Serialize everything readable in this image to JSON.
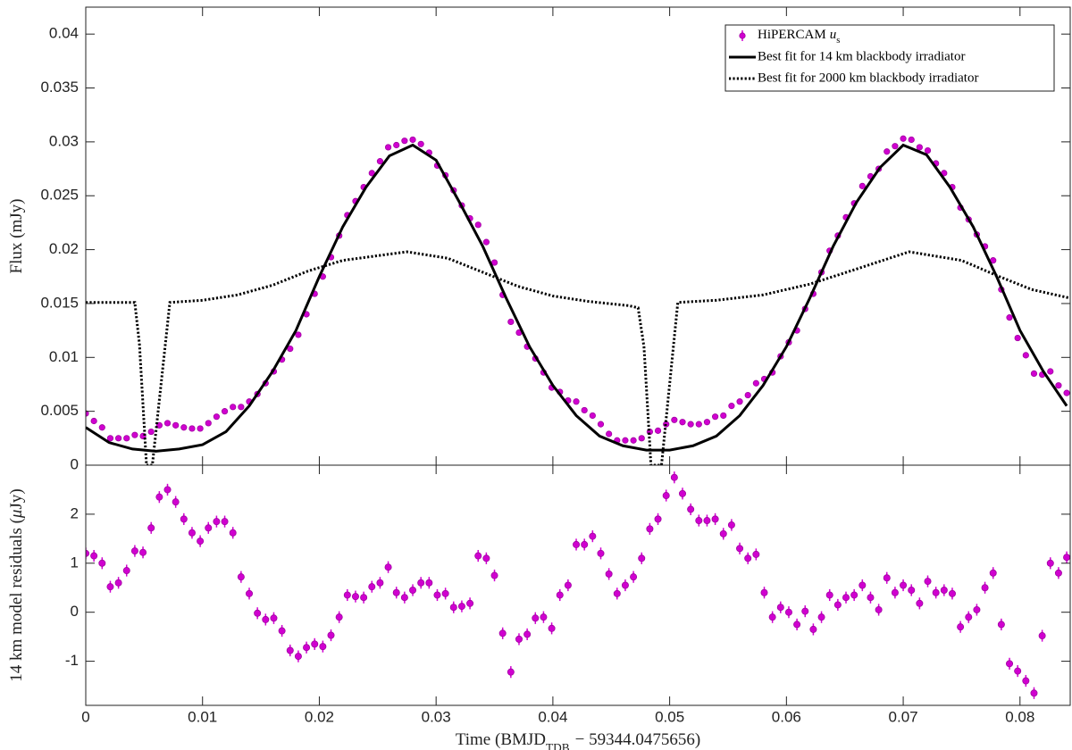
{
  "chart_data": [
    {
      "type": "line",
      "ylabel": "Flux (mJy)",
      "xlim": [
        0,
        0.0843
      ],
      "ylim": [
        0,
        0.0425
      ],
      "xticks": [
        0,
        0.01,
        0.02,
        0.03,
        0.04,
        0.05,
        0.06,
        0.07,
        0.08
      ],
      "xticklabels": false,
      "yticks": [
        0,
        0.005,
        0.01,
        0.015,
        0.02,
        0.025,
        0.03,
        0.035,
        0.04
      ],
      "legend": "upper right",
      "series": [
        {
          "name": [
            "HiPERCAM",
            "u",
            "s"
          ],
          "color": "#d000d0",
          "style": "markers",
          "error": 0.0002,
          "x": [
            0,
            0.0007,
            0.0014,
            0.0021,
            0.0028,
            0.0035,
            0.0042,
            0.0049,
            0.0056,
            0.0063,
            0.007,
            0.0077,
            0.0084,
            0.0091,
            0.0098,
            0.0105,
            0.0112,
            0.0119,
            0.0126,
            0.0133,
            0.014,
            0.0147,
            0.0154,
            0.0161,
            0.0168,
            0.0175,
            0.0182,
            0.0189,
            0.0196,
            0.0203,
            0.021,
            0.0217,
            0.0224,
            0.0231,
            0.0238,
            0.0245,
            0.0252,
            0.0259,
            0.0266,
            0.0273,
            0.028,
            0.0287,
            0.0294,
            0.0301,
            0.0308,
            0.0315,
            0.0322,
            0.0329,
            0.0336,
            0.0343,
            0.035,
            0.0357,
            0.0364,
            0.0371,
            0.0378,
            0.0385,
            0.0392,
            0.0399,
            0.0406,
            0.0413,
            0.042,
            0.0427,
            0.0434,
            0.0441,
            0.0448,
            0.0455,
            0.0462,
            0.0469,
            0.0476,
            0.0483,
            0.049,
            0.0497,
            0.0504,
            0.0511,
            0.0518,
            0.0525,
            0.0532,
            0.0539,
            0.0546,
            0.0553,
            0.056,
            0.0567,
            0.0574,
            0.0581,
            0.0588,
            0.0595,
            0.0602,
            0.0609,
            0.0616,
            0.0623,
            0.063,
            0.0637,
            0.0644,
            0.0651,
            0.0658,
            0.0665,
            0.0672,
            0.0679,
            0.0686,
            0.0693,
            0.07,
            0.0707,
            0.0714,
            0.0721,
            0.0728,
            0.0735,
            0.0742,
            0.0749,
            0.0756,
            0.0763,
            0.077,
            0.0777,
            0.0784,
            0.0791,
            0.0798,
            0.0805,
            0.0812,
            0.0819,
            0.0826,
            0.0833,
            0.084
          ],
          "values": [
            0.0048,
            0.0041,
            0.0035,
            0.0025,
            0.0025,
            0.0025,
            0.0028,
            0.0027,
            0.0031,
            0.0037,
            0.0039,
            0.0037,
            0.0035,
            0.0034,
            0.0034,
            0.0039,
            0.0045,
            0.005,
            0.0054,
            0.0054,
            0.0059,
            0.0066,
            0.0076,
            0.0087,
            0.0098,
            0.0108,
            0.0121,
            0.014,
            0.0159,
            0.0175,
            0.0193,
            0.0213,
            0.0232,
            0.0245,
            0.0258,
            0.0271,
            0.0282,
            0.0295,
            0.0297,
            0.0301,
            0.0302,
            0.0298,
            0.029,
            0.0278,
            0.0269,
            0.0255,
            0.0241,
            0.0229,
            0.0223,
            0.0207,
            0.0188,
            0.0158,
            0.0133,
            0.0123,
            0.011,
            0.0099,
            0.0086,
            0.0072,
            0.0068,
            0.006,
            0.0059,
            0.0051,
            0.0046,
            0.0038,
            0.0029,
            0.0023,
            0.0023,
            0.0023,
            0.0025,
            0.0031,
            0.0032,
            0.0038,
            0.0042,
            0.004,
            0.0038,
            0.0038,
            0.004,
            0.0045,
            0.0046,
            0.0055,
            0.0059,
            0.0065,
            0.0076,
            0.008,
            0.0086,
            0.0101,
            0.0114,
            0.0125,
            0.0145,
            0.0159,
            0.0179,
            0.0199,
            0.0213,
            0.023,
            0.0243,
            0.0259,
            0.0268,
            0.0275,
            0.0291,
            0.0296,
            0.0303,
            0.0302,
            0.0295,
            0.0292,
            0.028,
            0.0271,
            0.0258,
            0.0239,
            0.0228,
            0.0214,
            0.0203,
            0.019,
            0.0163,
            0.0137,
            0.0118,
            0.0102,
            0.0085,
            0.0084,
            0.0087,
            0.0074,
            0.0067
          ]
        },
        {
          "name": "Best fit for 14 km blackbody irradiator",
          "color": "#000000",
          "style": "solid",
          "x": [
            0,
            0.002,
            0.004,
            0.006,
            0.008,
            0.01,
            0.012,
            0.014,
            0.016,
            0.018,
            0.02,
            0.022,
            0.024,
            0.026,
            0.028,
            0.03,
            0.032,
            0.034,
            0.036,
            0.038,
            0.04,
            0.042,
            0.044,
            0.046,
            0.048,
            0.05,
            0.052,
            0.054,
            0.056,
            0.058,
            0.06,
            0.062,
            0.064,
            0.066,
            0.068,
            0.07,
            0.072,
            0.074,
            0.076,
            0.078,
            0.08,
            0.082,
            0.084
          ],
          "values": [
            0.0035,
            0.0021,
            0.0015,
            0.0013,
            0.0015,
            0.0019,
            0.0031,
            0.0055,
            0.0087,
            0.0125,
            0.0175,
            0.0221,
            0.0258,
            0.0287,
            0.0297,
            0.0283,
            0.0244,
            0.0203,
            0.0155,
            0.011,
            0.0074,
            0.0046,
            0.0027,
            0.0018,
            0.0014,
            0.0014,
            0.0018,
            0.0027,
            0.0046,
            0.0074,
            0.011,
            0.0155,
            0.0203,
            0.0244,
            0.0276,
            0.0297,
            0.0288,
            0.0258,
            0.0221,
            0.0175,
            0.0125,
            0.0087,
            0.0055
          ]
        },
        {
          "name": "Best fit for 2000 km blackbody irradiator",
          "color": "#000000",
          "style": "dotted",
          "x": [
            0,
            0.0042,
            0.0046,
            0.0052,
            0.0057,
            0.0072,
            0.01,
            0.013,
            0.016,
            0.019,
            0.022,
            0.0275,
            0.031,
            0.034,
            0.037,
            0.04,
            0.043,
            0.0465,
            0.0473,
            0.0478,
            0.0484,
            0.0493,
            0.0507,
            0.054,
            0.058,
            0.062,
            0.066,
            0.0705,
            0.075,
            0.078,
            0.081,
            0.0843
          ],
          "values": [
            0.0151,
            0.0151,
            0.0112,
            0,
            0,
            0.0151,
            0.0153,
            0.0158,
            0.0167,
            0.018,
            0.019,
            0.0198,
            0.0192,
            0.0179,
            0.0166,
            0.0157,
            0.0152,
            0.0148,
            0.0146,
            0.011,
            0,
            0,
            0.0151,
            0.0153,
            0.0158,
            0.0168,
            0.0182,
            0.0198,
            0.019,
            0.0176,
            0.0163,
            0.0155
          ]
        }
      ]
    },
    {
      "type": "line",
      "ylabel": [
        "14 km model residuals (",
        "μ",
        "Jy)"
      ],
      "xlabel": [
        "Time (BMJD",
        "TDB",
        "− 59344.0475656)"
      ],
      "xlim": [
        0,
        0.0843
      ],
      "ylim": [
        -1.9,
        3
      ],
      "xticks": [
        0,
        0.01,
        0.02,
        0.03,
        0.04,
        0.05,
        0.06,
        0.07,
        0.08
      ],
      "yticks": [
        -1,
        0,
        1,
        2
      ],
      "series": [
        {
          "color": "#d000d0",
          "style": "markers",
          "error": 0.12,
          "x": [
            0,
            0.0007,
            0.0014,
            0.0021,
            0.0028,
            0.0035,
            0.0042,
            0.0049,
            0.0056,
            0.0063,
            0.007,
            0.0077,
            0.0084,
            0.0091,
            0.0098,
            0.0105,
            0.0112,
            0.0119,
            0.0126,
            0.0133,
            0.014,
            0.0147,
            0.0154,
            0.0161,
            0.0168,
            0.0175,
            0.0182,
            0.0189,
            0.0196,
            0.0203,
            0.021,
            0.0217,
            0.0224,
            0.0231,
            0.0238,
            0.0245,
            0.0252,
            0.0259,
            0.0266,
            0.0273,
            0.028,
            0.0287,
            0.0294,
            0.0301,
            0.0308,
            0.0315,
            0.0322,
            0.0329,
            0.0336,
            0.0343,
            0.035,
            0.0357,
            0.0364,
            0.0371,
            0.0378,
            0.0385,
            0.0392,
            0.0399,
            0.0406,
            0.0413,
            0.042,
            0.0427,
            0.0434,
            0.0441,
            0.0448,
            0.0455,
            0.0462,
            0.0469,
            0.0476,
            0.0483,
            0.049,
            0.0497,
            0.0504,
            0.0511,
            0.0518,
            0.0525,
            0.0532,
            0.0539,
            0.0546,
            0.0553,
            0.056,
            0.0567,
            0.0574,
            0.0581,
            0.0588,
            0.0595,
            0.0602,
            0.0609,
            0.0616,
            0.0623,
            0.063,
            0.0637,
            0.0644,
            0.0651,
            0.0658,
            0.0665,
            0.0672,
            0.0679,
            0.0686,
            0.0693,
            0.07,
            0.0707,
            0.0714,
            0.0721,
            0.0728,
            0.0735,
            0.0742,
            0.0749,
            0.0756,
            0.0763,
            0.077,
            0.0777,
            0.0784,
            0.0791,
            0.0798,
            0.0805,
            0.0812,
            0.0819,
            0.0826,
            0.0833,
            0.084
          ],
          "values": [
            1.2,
            1.15,
            1.0,
            0.52,
            0.6,
            0.85,
            1.25,
            1.22,
            1.72,
            2.35,
            2.5,
            2.25,
            1.9,
            1.62,
            1.45,
            1.72,
            1.85,
            1.85,
            1.62,
            0.72,
            0.38,
            -0.02,
            -0.15,
            -0.12,
            -0.38,
            -0.78,
            -0.9,
            -0.72,
            -0.65,
            -0.7,
            -0.47,
            -0.1,
            0.35,
            0.32,
            0.3,
            0.52,
            0.6,
            0.92,
            0.4,
            0.3,
            0.45,
            0.6,
            0.6,
            0.35,
            0.38,
            0.1,
            0.12,
            0.18,
            1.15,
            1.1,
            0.75,
            -0.43,
            -1.22,
            -0.55,
            -0.45,
            -0.12,
            -0.1,
            -0.33,
            0.35,
            0.55,
            1.38,
            1.38,
            1.55,
            1.2,
            0.78,
            0.38,
            0.55,
            0.72,
            1.1,
            1.7,
            1.9,
            2.38,
            2.75,
            2.42,
            2.1,
            1.87,
            1.87,
            1.9,
            1.6,
            1.78,
            1.3,
            1.1,
            1.18,
            0.4,
            -0.1,
            0.1,
            0.0,
            -0.25,
            0.02,
            -0.35,
            -0.1,
            0.35,
            0.15,
            0.3,
            0.35,
            0.55,
            0.3,
            0.05,
            0.7,
            0.4,
            0.55,
            0.45,
            0.18,
            0.63,
            0.4,
            0.45,
            0.38,
            -0.3,
            -0.1,
            0.05,
            0.5,
            0.8,
            -0.25,
            -1.05,
            -1.2,
            -1.4,
            -1.65,
            -0.48,
            1.0,
            0.8,
            1.12
          ]
        }
      ]
    }
  ]
}
